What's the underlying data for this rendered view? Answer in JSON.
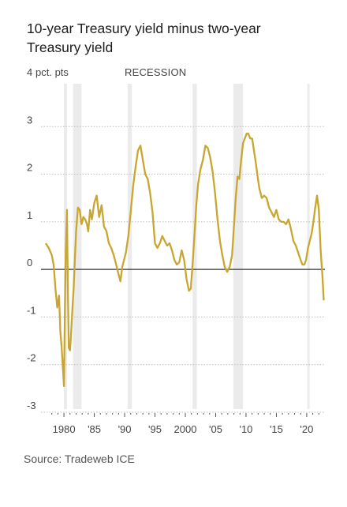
{
  "title_lines": [
    "10-year Treasury yield minus two-year",
    "Treasury yield"
  ],
  "source": "Source: Tradeweb ICE",
  "colors": {
    "line": "#c8a630",
    "recession": "#ebebeb",
    "zero": "#333333",
    "grid": "#bdbdbd"
  },
  "chart_data": {
    "type": "line",
    "title": "10-year Treasury yield minus two-year Treasury yield",
    "ylabel_unit": "pct. pts",
    "recession_label": "RECESSION",
    "ylim": [
      -3,
      4
    ],
    "xlim": [
      1977.0,
      2023.0
    ],
    "y_ticks": [
      {
        "value": 4,
        "label": "4"
      },
      {
        "value": 3,
        "label": "3"
      },
      {
        "value": 2,
        "label": "2"
      },
      {
        "value": 1,
        "label": "1"
      },
      {
        "value": 0,
        "label": "0"
      },
      {
        "value": -1,
        "label": "-1"
      },
      {
        "value": -2,
        "label": "-2"
      },
      {
        "value": -3,
        "label": "-3"
      }
    ],
    "x_ticks": [
      {
        "value": 1980,
        "label": "1980"
      },
      {
        "value": 1985,
        "label": "'85"
      },
      {
        "value": 1990,
        "label": "'90"
      },
      {
        "value": 1995,
        "label": "'95"
      },
      {
        "value": 2000,
        "label": "2000"
      },
      {
        "value": 2005,
        "label": "'05"
      },
      {
        "value": 2010,
        "label": "'10"
      },
      {
        "value": 2015,
        "label": "'15"
      },
      {
        "value": 2020,
        "label": "'20"
      }
    ],
    "grid": true,
    "recessions": [
      [
        1980.0,
        1980.5
      ],
      [
        1981.5,
        1982.9
      ],
      [
        1990.5,
        1991.2
      ],
      [
        2001.2,
        2001.9
      ],
      [
        2007.9,
        2009.5
      ],
      [
        2020.1,
        2020.4
      ]
    ],
    "series": [
      {
        "x": [
          1977.0,
          1977.5,
          1978.0,
          1978.3,
          1978.6,
          1978.9,
          1979.2,
          1979.4,
          1979.6,
          1979.8,
          1980.0,
          1980.15,
          1980.3,
          1980.5,
          1980.65,
          1980.8,
          1981.0,
          1981.2,
          1981.4,
          1981.6,
          1981.8,
          1982.0,
          1982.3,
          1982.6,
          1982.9,
          1983.2,
          1983.5,
          1983.8,
          1984.0,
          1984.3,
          1984.6,
          1985.0,
          1985.4,
          1985.8,
          1986.2,
          1986.6,
          1987.0,
          1987.4,
          1987.8,
          1988.2,
          1988.6,
          1989.0,
          1989.3,
          1989.6,
          1989.9,
          1990.2,
          1990.6,
          1991.0,
          1991.4,
          1991.8,
          1992.2,
          1992.6,
          1993.0,
          1993.4,
          1993.8,
          1994.2,
          1994.6,
          1995.0,
          1995.4,
          1995.8,
          1996.2,
          1996.6,
          1997.0,
          1997.4,
          1997.8,
          1998.2,
          1998.6,
          1999.0,
          1999.4,
          1999.8,
          2000.2,
          2000.6,
          2000.9,
          2001.2,
          2001.5,
          2001.8,
          2002.1,
          2002.5,
          2002.9,
          2003.3,
          2003.7,
          2004.1,
          2004.5,
          2004.9,
          2005.3,
          2005.7,
          2006.1,
          2006.5,
          2006.9,
          2007.3,
          2007.7,
          2008.0,
          2008.3,
          2008.6,
          2008.9,
          2009.2,
          2009.5,
          2009.8,
          2010.1,
          2010.4,
          2010.7,
          2011.0,
          2011.3,
          2011.6,
          2011.9,
          2012.2,
          2012.6,
          2013.0,
          2013.4,
          2013.8,
          2014.2,
          2014.6,
          2015.0,
          2015.4,
          2015.8,
          2016.2,
          2016.6,
          2017.0,
          2017.4,
          2017.8,
          2018.2,
          2018.6,
          2019.0,
          2019.3,
          2019.6,
          2019.9,
          2020.2,
          2020.5,
          2020.8,
          2021.1,
          2021.4,
          2021.7,
          2022.0,
          2022.3,
          2022.6,
          2022.8
        ],
        "y": [
          0.55,
          0.45,
          0.3,
          0.1,
          -0.4,
          -0.8,
          -0.55,
          -1.3,
          -1.6,
          -2.0,
          -2.45,
          -1.0,
          0.4,
          1.25,
          -0.5,
          -1.65,
          -1.7,
          -1.3,
          -0.8,
          -0.4,
          0.2,
          0.8,
          1.3,
          1.25,
          0.95,
          1.1,
          1.05,
          0.95,
          0.8,
          1.25,
          1.05,
          1.4,
          1.55,
          1.1,
          1.35,
          0.9,
          0.8,
          0.55,
          0.45,
          0.3,
          0.1,
          -0.1,
          -0.25,
          0.05,
          0.2,
          0.35,
          0.7,
          1.2,
          1.75,
          2.15,
          2.5,
          2.6,
          2.3,
          2.0,
          1.9,
          1.6,
          1.2,
          0.55,
          0.45,
          0.55,
          0.7,
          0.6,
          0.5,
          0.55,
          0.4,
          0.2,
          0.1,
          0.15,
          0.4,
          0.2,
          -0.2,
          -0.45,
          -0.4,
          0.1,
          0.7,
          1.35,
          1.8,
          2.1,
          2.3,
          2.6,
          2.55,
          2.35,
          2.05,
          1.6,
          1.05,
          0.6,
          0.3,
          0.05,
          -0.05,
          0.05,
          0.3,
          0.9,
          1.5,
          1.95,
          1.9,
          2.3,
          2.65,
          2.75,
          2.85,
          2.85,
          2.75,
          2.75,
          2.5,
          2.25,
          1.95,
          1.7,
          1.5,
          1.55,
          1.5,
          1.3,
          1.2,
          1.1,
          1.25,
          1.05,
          1.0,
          1.0,
          0.95,
          1.05,
          0.85,
          0.6,
          0.5,
          0.35,
          0.2,
          0.1,
          0.1,
          0.2,
          0.45,
          0.6,
          0.75,
          1.0,
          1.3,
          1.55,
          1.25,
          0.4,
          -0.15,
          -0.65
        ]
      }
    ]
  }
}
